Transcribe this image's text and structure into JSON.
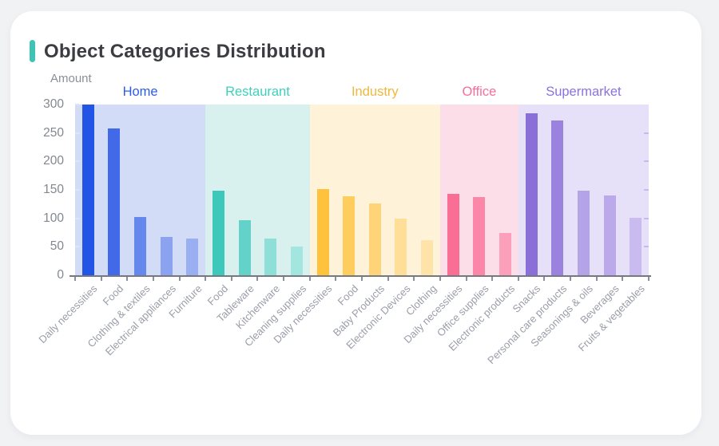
{
  "page": {
    "background_color": "#f1f2f4",
    "card_color": "#ffffff"
  },
  "header": {
    "title": "Object Categories Distribution",
    "accent_color": "#3ec3b5"
  },
  "axis_style": {
    "axis_line_color": "#75787e",
    "tick_color": "#8c9099",
    "x_label_color": "#9a9ea8",
    "y_label_color": "#83878f"
  },
  "chart_data": {
    "type": "bar",
    "title": "Object Categories Distribution",
    "xlabel": "",
    "ylabel": "Amount",
    "ylim": [
      0,
      300
    ],
    "yticks": [
      0,
      50,
      100,
      150,
      200,
      250,
      300
    ],
    "grid": false,
    "legend_position": "group-labels-above-plot",
    "groups": [
      {
        "name": "Home",
        "label_color": "#2b5ce6",
        "band_color": "#d2dcf6",
        "categories": [
          "Daily necessities",
          "Food",
          "Clothing & textiles",
          "Electrical appliances",
          "Furniture"
        ],
        "values": [
          300,
          258,
          102,
          68,
          64
        ],
        "bar_colors": [
          "#2254e6",
          "#4169e8",
          "#6488ec",
          "#8aa2f0",
          "#9aaff2"
        ]
      },
      {
        "name": "Restaurant",
        "label_color": "#3ed0bc",
        "band_color": "#d9f1ee",
        "categories": [
          "Food",
          "Tableware",
          "Kitchenware",
          "Cleaning supplies"
        ],
        "values": [
          149,
          97,
          65,
          50
        ],
        "bar_colors": [
          "#3ec8bc",
          "#63d3c9",
          "#8edfd8",
          "#a3e5df"
        ]
      },
      {
        "name": "Industry",
        "label_color": "#efb73e",
        "band_color": "#fef2d8",
        "categories": [
          "Daily necessities",
          "Food",
          "Baby Products",
          "Electronic Devices",
          "Clothing"
        ],
        "values": [
          151,
          139,
          126,
          99,
          62
        ],
        "bar_colors": [
          "#ffc23d",
          "#ffcc5e",
          "#ffd478",
          "#ffde98",
          "#ffe3a8"
        ]
      },
      {
        "name": "Office",
        "label_color": "#f76e9b",
        "band_color": "#fcdee8",
        "categories": [
          "Daily necessities",
          "Office supplies",
          "Electronic products"
        ],
        "values": [
          143,
          138,
          74
        ],
        "bar_colors": [
          "#fa6e96",
          "#fb86a8",
          "#fc9fba"
        ]
      },
      {
        "name": "Supermarket",
        "label_color": "#8b72de",
        "band_color": "#e6e1f8",
        "categories": [
          "Snacks",
          "Personal care products",
          "Seasonings & oils",
          "Beverages",
          "Fruits & vegetables"
        ],
        "values": [
          285,
          272,
          149,
          140,
          101
        ],
        "bar_colors": [
          "#8b6fd8",
          "#9b82de",
          "#b5a3e8",
          "#bca9eb",
          "#c9bbef"
        ]
      }
    ]
  }
}
